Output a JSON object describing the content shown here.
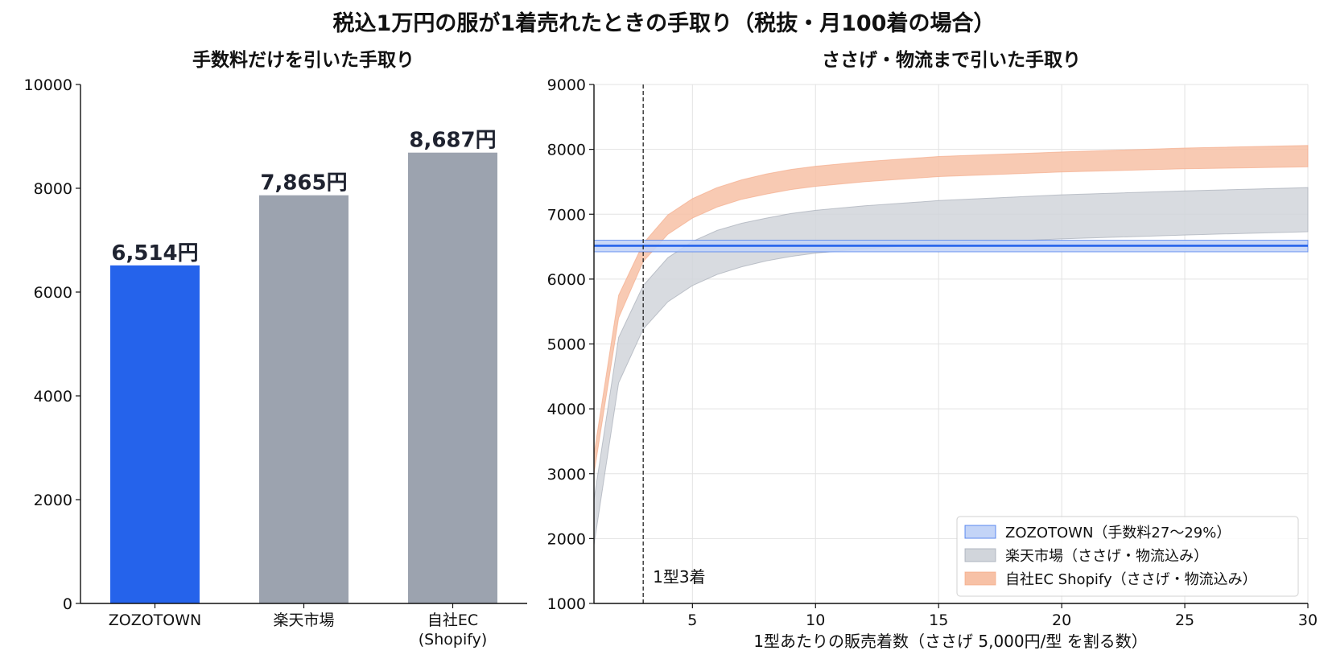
{
  "page": {
    "title": "税込1万円の服が1着売れたときの手取り（税抜・月100着の場合）"
  },
  "chart_data": [
    {
      "type": "bar",
      "title": "手数料だけを引いた手取り",
      "categories": [
        "ZOZOTOWN",
        "楽天市場",
        "自社EC\n(Shopify)"
      ],
      "values": [
        6514,
        7865,
        8687
      ],
      "value_labels": [
        "6,514円",
        "7,865円",
        "8,687円"
      ],
      "colors": [
        "#2563eb",
        "#9ca3af",
        "#9ca3af"
      ],
      "ylim": [
        0,
        10000
      ],
      "yticks": [
        0,
        2000,
        4000,
        6000,
        8000,
        10000
      ],
      "xlabel": "",
      "ylabel": "",
      "grid": false
    },
    {
      "type": "area",
      "title": "ささげ・物流まで引いた手取り",
      "xlabel": "1型あたりの販売着数（ささげ 5,000円/型 を割る数）",
      "ylabel": "",
      "xlim": [
        1,
        30
      ],
      "ylim": [
        1000,
        9000
      ],
      "xticks": [
        5,
        10,
        15,
        20,
        25,
        30
      ],
      "yticks": [
        1000,
        2000,
        3000,
        4000,
        5000,
        6000,
        7000,
        8000,
        9000
      ],
      "grid": true,
      "legend_position": "bottom-right",
      "x": [
        1,
        2,
        3,
        4,
        5,
        6,
        7,
        8,
        9,
        10,
        12,
        15,
        20,
        25,
        30
      ],
      "series": [
        {
          "name": "ZOZOTOWN（手数料27〜29%）",
          "color": "#2563eb",
          "fill": "#c3d4f7",
          "lower": [
            6420,
            6420,
            6420,
            6420,
            6420,
            6420,
            6420,
            6420,
            6420,
            6420,
            6420,
            6420,
            6420,
            6420,
            6420
          ],
          "upper": [
            6600,
            6600,
            6600,
            6600,
            6600,
            6600,
            6600,
            6600,
            6600,
            6600,
            6600,
            6600,
            6600,
            6600,
            6600
          ],
          "line": [
            6514,
            6514,
            6514,
            6514,
            6514,
            6514,
            6514,
            6514,
            6514,
            6514,
            6514,
            6514,
            6514,
            6514,
            6514
          ]
        },
        {
          "name": "楽天市場（ささげ・物流込み）",
          "color": "#9ca3af",
          "fill": "#d1d5db",
          "lower": [
            1900,
            4400,
            5230,
            5650,
            5900,
            6070,
            6190,
            6280,
            6350,
            6400,
            6470,
            6540,
            6620,
            6680,
            6730
          ],
          "upper": [
            2600,
            5100,
            5900,
            6330,
            6580,
            6750,
            6860,
            6940,
            7010,
            7060,
            7130,
            7210,
            7300,
            7360,
            7410
          ]
        },
        {
          "name": "自社EC Shopify（ささげ・物流込み）",
          "color": "#f4a582",
          "fill": "#f7c1a6",
          "lower": [
            3000,
            5400,
            6270,
            6690,
            6940,
            7110,
            7230,
            7310,
            7380,
            7430,
            7500,
            7580,
            7650,
            7700,
            7730
          ],
          "upper": [
            3300,
            5750,
            6550,
            6990,
            7240,
            7410,
            7530,
            7620,
            7690,
            7740,
            7810,
            7890,
            7960,
            8020,
            8060
          ]
        }
      ],
      "annotations": [
        {
          "x": 3,
          "text": "1型3着"
        }
      ]
    }
  ]
}
